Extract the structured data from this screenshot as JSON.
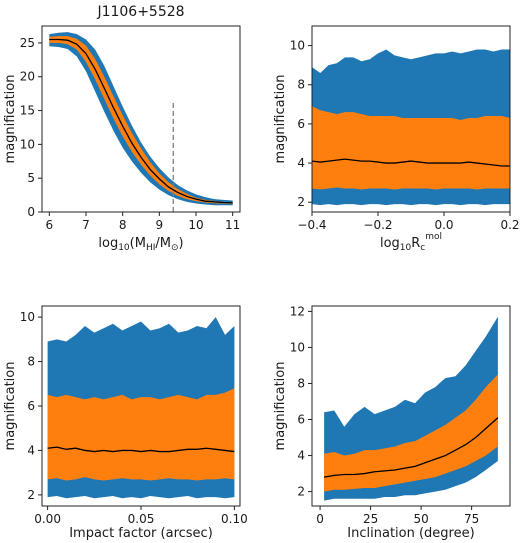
{
  "figure_title": "J1106+5528",
  "chart_data": [
    {
      "type": "area",
      "title": "J1106+5528",
      "xlabel": "log10(MHI/M⊙)",
      "ylabel": "magnification",
      "xlim": [
        5.8,
        11.2
      ],
      "ylim": [
        0,
        27.5
      ],
      "xticks": [
        6,
        7,
        8,
        9,
        10,
        11
      ],
      "yticks": [
        0,
        5,
        10,
        15,
        20,
        25
      ],
      "colors": {
        "outer": "#1f77b4",
        "inner": "#ff7f0e",
        "median": "#000000",
        "marker": "#808080"
      },
      "x": [
        6.0,
        6.25,
        6.5,
        6.75,
        7.0,
        7.25,
        7.5,
        7.75,
        8.0,
        8.25,
        8.5,
        8.75,
        9.0,
        9.25,
        9.5,
        9.75,
        10.0,
        10.25,
        10.5,
        10.75,
        11.0
      ],
      "series": [
        {
          "role": "outer_low",
          "values": [
            24.5,
            24.4,
            24.1,
            23.0,
            20.8,
            17.8,
            14.8,
            12.0,
            9.5,
            7.5,
            5.8,
            4.4,
            3.3,
            2.5,
            1.9,
            1.5,
            1.25,
            1.1,
            1.0,
            1.0,
            1.0
          ]
        },
        {
          "role": "outer_high",
          "values": [
            26.3,
            26.5,
            26.6,
            26.3,
            25.5,
            24.0,
            21.6,
            18.6,
            15.6,
            12.8,
            10.3,
            8.2,
            6.5,
            5.1,
            4.0,
            3.2,
            2.6,
            2.2,
            1.9,
            1.8,
            1.7
          ]
        },
        {
          "role": "inner_low",
          "values": [
            25.0,
            25.0,
            24.8,
            24.0,
            22.2,
            19.6,
            16.7,
            13.8,
            11.2,
            8.9,
            7.0,
            5.4,
            4.1,
            3.1,
            2.4,
            1.9,
            1.6,
            1.4,
            1.3,
            1.25,
            1.2
          ]
        },
        {
          "role": "inner_high",
          "values": [
            25.9,
            26.0,
            26.0,
            25.6,
            24.6,
            22.6,
            20.0,
            17.1,
            14.3,
            11.7,
            9.4,
            7.4,
            5.7,
            4.4,
            3.4,
            2.7,
            2.1,
            1.8,
            1.6,
            1.5,
            1.4
          ]
        },
        {
          "role": "median",
          "values": [
            25.5,
            25.5,
            25.4,
            24.8,
            23.4,
            21.1,
            18.3,
            15.4,
            12.7,
            10.2,
            8.1,
            6.3,
            4.9,
            3.7,
            2.9,
            2.3,
            1.9,
            1.6,
            1.5,
            1.4,
            1.35
          ]
        }
      ],
      "vline": {
        "x": 9.38,
        "ymin": 0,
        "ymax": 16.5
      }
    },
    {
      "type": "area",
      "xlabel": "log10Rcmol",
      "ylabel": "magnification",
      "xlim": [
        -0.4,
        0.2
      ],
      "ylim": [
        1.5,
        11
      ],
      "xticks": [
        -0.4,
        -0.2,
        0.0,
        0.2
      ],
      "xtick_labels": [
        "−0.4",
        "−0.2",
        "0.0",
        "0.2"
      ],
      "yticks": [
        2,
        4,
        6,
        8,
        10
      ],
      "x": [
        -0.4,
        -0.375,
        -0.35,
        -0.325,
        -0.3,
        -0.275,
        -0.25,
        -0.225,
        -0.2,
        -0.175,
        -0.15,
        -0.125,
        -0.1,
        -0.075,
        -0.05,
        -0.025,
        0.0,
        0.025,
        0.05,
        0.075,
        0.1,
        0.125,
        0.15,
        0.175,
        0.2
      ],
      "series": [
        {
          "role": "outer_low",
          "values": [
            1.9,
            1.85,
            1.9,
            1.85,
            1.9,
            1.9,
            1.85,
            1.9,
            1.9,
            1.85,
            1.9,
            1.9,
            1.85,
            1.9,
            1.9,
            1.85,
            1.9,
            1.9,
            1.85,
            1.9,
            1.9,
            1.85,
            1.9,
            1.9,
            1.9
          ]
        },
        {
          "role": "outer_high",
          "values": [
            8.9,
            8.6,
            9.0,
            9.1,
            9.4,
            9.4,
            9.2,
            9.3,
            9.6,
            9.8,
            9.5,
            9.4,
            9.3,
            9.4,
            9.5,
            9.6,
            9.6,
            9.7,
            9.6,
            9.7,
            9.8,
            9.8,
            9.7,
            9.8,
            9.8
          ]
        },
        {
          "role": "inner_low",
          "values": [
            2.7,
            2.65,
            2.7,
            2.75,
            2.7,
            2.7,
            2.65,
            2.7,
            2.7,
            2.7,
            2.65,
            2.7,
            2.7,
            2.7,
            2.7,
            2.65,
            2.7,
            2.7,
            2.7,
            2.7,
            2.65,
            2.7,
            2.7,
            2.7,
            2.7
          ]
        },
        {
          "role": "inner_high",
          "values": [
            6.9,
            6.7,
            6.6,
            6.5,
            6.6,
            6.6,
            6.5,
            6.4,
            6.4,
            6.4,
            6.4,
            6.3,
            6.3,
            6.3,
            6.3,
            6.3,
            6.3,
            6.3,
            6.2,
            6.3,
            6.3,
            6.4,
            6.4,
            6.4,
            6.3
          ]
        },
        {
          "role": "median",
          "values": [
            4.1,
            4.05,
            4.1,
            4.15,
            4.2,
            4.15,
            4.1,
            4.1,
            4.05,
            4.0,
            4.0,
            4.05,
            4.1,
            4.05,
            4.0,
            4.0,
            4.0,
            4.0,
            4.0,
            4.05,
            4.0,
            3.95,
            3.9,
            3.85,
            3.85
          ]
        }
      ]
    },
    {
      "type": "area",
      "xlabel": "Impact factor (arcsec)",
      "ylabel": "magnification",
      "xlim": [
        -0.003,
        0.103
      ],
      "ylim": [
        1.5,
        10.5
      ],
      "xticks": [
        0.0,
        0.05,
        0.1
      ],
      "xtick_labels": [
        "0.00",
        "0.05",
        "0.10"
      ],
      "yticks": [
        2,
        4,
        6,
        8,
        10
      ],
      "x": [
        0.0,
        0.005,
        0.01,
        0.015,
        0.02,
        0.025,
        0.03,
        0.035,
        0.04,
        0.045,
        0.05,
        0.055,
        0.06,
        0.065,
        0.07,
        0.075,
        0.08,
        0.085,
        0.09,
        0.095,
        0.1
      ],
      "series": [
        {
          "role": "outer_low",
          "values": [
            1.9,
            1.95,
            1.85,
            1.9,
            1.95,
            1.85,
            1.9,
            1.95,
            1.85,
            1.9,
            1.85,
            1.95,
            1.9,
            1.85,
            1.9,
            1.95,
            1.85,
            1.9,
            1.9,
            1.85,
            1.9
          ]
        },
        {
          "role": "outer_high",
          "values": [
            8.9,
            9.0,
            8.9,
            9.2,
            9.6,
            9.3,
            9.5,
            9.7,
            9.4,
            9.6,
            9.8,
            9.4,
            9.5,
            9.7,
            9.3,
            9.4,
            9.6,
            9.5,
            10.0,
            9.2,
            9.6
          ]
        },
        {
          "role": "inner_low",
          "values": [
            2.7,
            2.75,
            2.65,
            2.7,
            2.8,
            2.7,
            2.65,
            2.7,
            2.75,
            2.7,
            2.7,
            2.65,
            2.7,
            2.75,
            2.7,
            2.7,
            2.65,
            2.7,
            2.7,
            2.75,
            2.7
          ]
        },
        {
          "role": "inner_high",
          "values": [
            6.5,
            6.4,
            6.5,
            6.4,
            6.3,
            6.4,
            6.3,
            6.4,
            6.5,
            6.3,
            6.4,
            6.4,
            6.3,
            6.4,
            6.5,
            6.4,
            6.3,
            6.5,
            6.5,
            6.6,
            6.8
          ]
        },
        {
          "role": "median",
          "values": [
            4.1,
            4.15,
            4.05,
            4.1,
            4.0,
            3.95,
            4.0,
            3.95,
            4.0,
            4.0,
            3.95,
            4.0,
            3.95,
            3.95,
            4.0,
            4.05,
            4.05,
            4.1,
            4.05,
            4.0,
            3.95
          ]
        }
      ]
    },
    {
      "type": "area",
      "xlabel": "Inclination (degree)",
      "ylabel": "magnification",
      "xlim": [
        -4,
        94
      ],
      "ylim": [
        1.2,
        12.3
      ],
      "xticks": [
        0,
        25,
        50,
        75
      ],
      "yticks": [
        2,
        4,
        6,
        8,
        10,
        12
      ],
      "x": [
        2,
        7,
        12,
        17,
        22,
        27,
        32,
        37,
        42,
        47,
        52,
        57,
        62,
        67,
        72,
        77,
        82,
        88
      ],
      "series": [
        {
          "role": "outer_low",
          "values": [
            1.5,
            1.6,
            1.6,
            1.6,
            1.6,
            1.6,
            1.7,
            1.7,
            1.8,
            1.8,
            1.9,
            2.0,
            2.1,
            2.3,
            2.5,
            2.8,
            3.2,
            3.7
          ]
        },
        {
          "role": "outer_high",
          "values": [
            6.4,
            6.5,
            5.6,
            6.3,
            6.7,
            6.3,
            6.5,
            6.7,
            7.1,
            6.9,
            7.5,
            7.8,
            8.3,
            8.4,
            9.0,
            9.8,
            10.6,
            11.7
          ]
        },
        {
          "role": "inner_low",
          "values": [
            2.0,
            2.1,
            2.1,
            2.15,
            2.2,
            2.2,
            2.3,
            2.4,
            2.5,
            2.6,
            2.7,
            2.8,
            3.0,
            3.2,
            3.4,
            3.7,
            4.0,
            4.5
          ]
        },
        {
          "role": "inner_high",
          "values": [
            4.1,
            4.2,
            4.0,
            4.1,
            4.3,
            4.3,
            4.4,
            4.5,
            4.7,
            4.8,
            5.1,
            5.4,
            5.7,
            6.1,
            6.5,
            7.1,
            7.8,
            8.5
          ]
        },
        {
          "role": "median",
          "values": [
            2.8,
            2.9,
            2.95,
            2.95,
            3.0,
            3.1,
            3.15,
            3.2,
            3.3,
            3.4,
            3.6,
            3.8,
            4.0,
            4.3,
            4.6,
            5.0,
            5.5,
            6.1
          ]
        }
      ]
    }
  ]
}
